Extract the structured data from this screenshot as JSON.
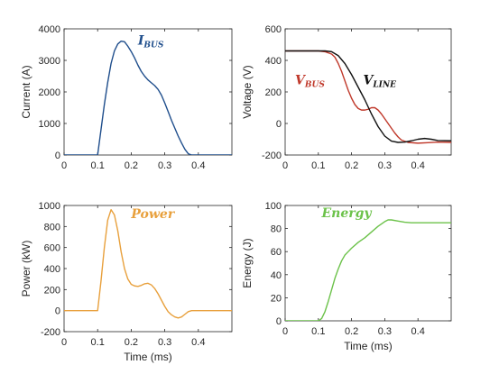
{
  "chart_data": [
    {
      "type": "line",
      "id": "current",
      "xlabel": "",
      "ylabel": "Current (A)",
      "xlim": [
        0,
        0.5
      ],
      "ylim": [
        0,
        4000
      ],
      "xticks": [
        0,
        0.1,
        0.2,
        0.3,
        0.4
      ],
      "xtick_labels": [
        "0",
        "0.1",
        "0.2",
        "0.3",
        "0.4"
      ],
      "yticks": [
        0,
        1000,
        2000,
        3000,
        4000
      ],
      "ytick_labels": [
        "0",
        "1000",
        "2000",
        "3000",
        "4000"
      ],
      "grid": false,
      "annotations": [
        {
          "main": "I",
          "sub": "BUS",
          "color": "#1f4e8c",
          "at": [
            0.22,
            3500
          ]
        }
      ],
      "series": [
        {
          "name": "",
          "color": "#1f4e8c",
          "x": [
            0,
            0.1,
            0.11,
            0.12,
            0.13,
            0.14,
            0.15,
            0.16,
            0.17,
            0.18,
            0.19,
            0.2,
            0.21,
            0.22,
            0.23,
            0.24,
            0.25,
            0.26,
            0.27,
            0.28,
            0.29,
            0.3,
            0.31,
            0.32,
            0.33,
            0.34,
            0.35,
            0.36,
            0.37,
            0.38,
            0.39,
            0.4,
            0.5
          ],
          "y": [
            0,
            0,
            800,
            1600,
            2300,
            2900,
            3300,
            3520,
            3610,
            3590,
            3450,
            3280,
            3080,
            2850,
            2650,
            2500,
            2380,
            2290,
            2200,
            2080,
            1900,
            1650,
            1380,
            1100,
            850,
            600,
            380,
            180,
            40,
            0,
            0,
            0,
            0
          ]
        }
      ]
    },
    {
      "type": "line",
      "id": "voltage",
      "xlabel": "",
      "ylabel": "Voltage (V)",
      "xlim": [
        0,
        0.5
      ],
      "ylim": [
        -200,
        600
      ],
      "xticks": [
        0,
        0.1,
        0.2,
        0.3,
        0.4
      ],
      "xtick_labels": [
        "0",
        "0.1",
        "0.2",
        "0.3",
        "0.4"
      ],
      "yticks": [
        -200,
        0,
        200,
        400,
        600
      ],
      "ytick_labels": [
        "-200",
        "0",
        "200",
        "400",
        "600"
      ],
      "grid": false,
      "annotations": [
        {
          "main": "V",
          "sub": "BUS",
          "color": "#c0392b",
          "at": [
            0.03,
            250
          ]
        },
        {
          "main": "V",
          "sub": "LINE",
          "color": "#111111",
          "at": [
            0.235,
            250
          ]
        }
      ],
      "series": [
        {
          "name": "",
          "color": "#c0392b",
          "x": [
            0,
            0.1,
            0.12,
            0.14,
            0.15,
            0.16,
            0.17,
            0.18,
            0.19,
            0.2,
            0.21,
            0.22,
            0.23,
            0.24,
            0.25,
            0.26,
            0.27,
            0.28,
            0.29,
            0.3,
            0.31,
            0.32,
            0.33,
            0.34,
            0.35,
            0.37,
            0.4,
            0.43,
            0.46,
            0.5
          ],
          "y": [
            460,
            460,
            455,
            440,
            420,
            380,
            330,
            270,
            210,
            160,
            120,
            95,
            85,
            85,
            90,
            100,
            100,
            85,
            60,
            30,
            0,
            -30,
            -60,
            -85,
            -105,
            -120,
            -125,
            -122,
            -118,
            -120
          ]
        },
        {
          "name": "",
          "color": "#111111",
          "x": [
            0,
            0.1,
            0.12,
            0.14,
            0.16,
            0.18,
            0.2,
            0.22,
            0.24,
            0.26,
            0.28,
            0.3,
            0.32,
            0.34,
            0.36,
            0.38,
            0.4,
            0.42,
            0.44,
            0.46,
            0.5
          ],
          "y": [
            460,
            460,
            460,
            455,
            430,
            380,
            310,
            230,
            150,
            60,
            -20,
            -80,
            -112,
            -120,
            -118,
            -110,
            -100,
            -95,
            -100,
            -108,
            -110
          ]
        }
      ]
    },
    {
      "type": "line",
      "id": "power",
      "xlabel": "Time (ms)",
      "ylabel": "Power (kW)",
      "xlim": [
        0,
        0.5
      ],
      "ylim": [
        -200,
        1000
      ],
      "xticks": [
        0,
        0.1,
        0.2,
        0.3,
        0.4
      ],
      "xtick_labels": [
        "0",
        "0.1",
        "0.2",
        "0.3",
        "0.4"
      ],
      "yticks": [
        -200,
        0,
        200,
        400,
        600,
        800,
        1000
      ],
      "ytick_labels": [
        "-200",
        "0",
        "200",
        "400",
        "600",
        "800",
        "1000"
      ],
      "grid": false,
      "annotations": [
        {
          "main": "Power",
          "sub": "",
          "color": "#e8a03c",
          "at": [
            0.2,
            880
          ]
        }
      ],
      "series": [
        {
          "name": "",
          "color": "#e8a03c",
          "x": [
            0,
            0.1,
            0.11,
            0.12,
            0.13,
            0.14,
            0.15,
            0.16,
            0.17,
            0.18,
            0.19,
            0.2,
            0.21,
            0.22,
            0.23,
            0.24,
            0.25,
            0.26,
            0.27,
            0.28,
            0.29,
            0.3,
            0.31,
            0.32,
            0.33,
            0.34,
            0.35,
            0.36,
            0.37,
            0.38,
            0.4,
            0.5
          ],
          "y": [
            0,
            0,
            280,
            600,
            860,
            960,
            910,
            760,
            560,
            400,
            300,
            250,
            235,
            230,
            240,
            255,
            260,
            245,
            210,
            160,
            100,
            40,
            -10,
            -40,
            -60,
            -70,
            -60,
            -35,
            -10,
            0,
            0,
            0
          ]
        }
      ]
    },
    {
      "type": "line",
      "id": "energy",
      "xlabel": "Time (ms)",
      "ylabel": "Energy (J)",
      "xlim": [
        0,
        0.5
      ],
      "ylim": [
        0,
        100
      ],
      "xticks": [
        0,
        0.1,
        0.2,
        0.3,
        0.4
      ],
      "xtick_labels": [
        "0",
        "0.1",
        "0.2",
        "0.3",
        "0.4"
      ],
      "yticks": [
        0,
        20,
        40,
        60,
        80,
        100
      ],
      "ytick_labels": [
        "0",
        "20",
        "40",
        "60",
        "80",
        "100"
      ],
      "grid": false,
      "annotations": [
        {
          "main": "Energy",
          "sub": "",
          "color": "#6cc24a",
          "at": [
            0.11,
            90
          ]
        }
      ],
      "series": [
        {
          "name": "",
          "color": "#6cc24a",
          "x": [
            0,
            0.1,
            0.11,
            0.12,
            0.13,
            0.14,
            0.15,
            0.16,
            0.17,
            0.18,
            0.19,
            0.2,
            0.22,
            0.24,
            0.26,
            0.28,
            0.3,
            0.31,
            0.32,
            0.34,
            0.36,
            0.38,
            0.4,
            0.45,
            0.5
          ],
          "y": [
            0,
            0,
            2,
            8,
            17,
            27,
            37,
            45,
            52,
            57,
            60,
            63,
            68,
            72,
            77,
            82,
            86,
            87.5,
            87.5,
            86.5,
            85.5,
            85,
            85,
            85,
            85
          ]
        }
      ]
    }
  ]
}
